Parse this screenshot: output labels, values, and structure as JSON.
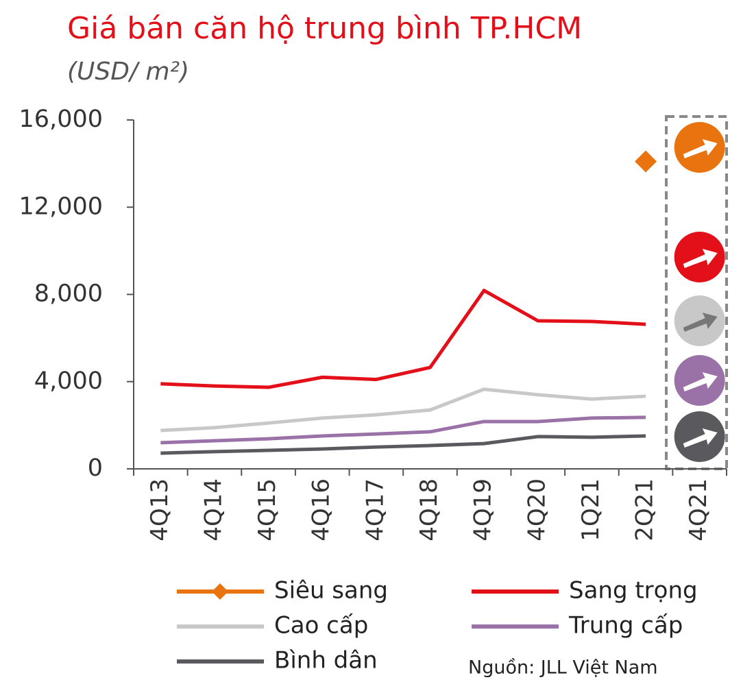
{
  "chart_data": {
    "type": "line",
    "title": "Giá bán căn hộ trung bình TP.HCM",
    "subtitle": "(USD/ m²)",
    "source": "Nguồn: JLL Việt Nam",
    "categories": [
      "4Q13",
      "4Q14",
      "4Q15",
      "4Q16",
      "4Q17",
      "4Q18",
      "4Q19",
      "4Q20",
      "1Q21",
      "2Q21",
      "4Q21"
    ],
    "ylim": [
      0,
      16000
    ],
    "yticks": [
      0,
      {
        "value": 4000,
        "label": "4,000"
      },
      {
        "value": 8000,
        "label": "8,000"
      },
      {
        "value": 12000,
        "label": "12,000"
      },
      {
        "value": 16000,
        "label": "16,000"
      }
    ],
    "series": [
      {
        "name": "Siêu sang",
        "color": "#e8730f",
        "marker": "diamond",
        "values": [
          null,
          null,
          null,
          null,
          null,
          null,
          null,
          null,
          null,
          14100,
          null
        ]
      },
      {
        "name": "Sang trọng",
        "color": "#e3101a",
        "values": [
          3900,
          3800,
          3740,
          4200,
          4100,
          4650,
          8180,
          6790,
          6760,
          6630,
          null
        ]
      },
      {
        "name": "Cao cấp",
        "color": "#c8c8c8",
        "values": [
          1760,
          1890,
          2100,
          2330,
          2480,
          2700,
          3650,
          3400,
          3200,
          3330,
          null
        ]
      },
      {
        "name": "Trung cấp",
        "color": "#9b72a8",
        "values": [
          1200,
          1290,
          1380,
          1510,
          1600,
          1700,
          2170,
          2170,
          2330,
          2360,
          null
        ]
      },
      {
        "name": "Bình dân",
        "color": "#5a5a5e",
        "values": [
          720,
          790,
          850,
          910,
          1000,
          1070,
          1160,
          1480,
          1450,
          1510,
          null
        ]
      }
    ]
  }
}
